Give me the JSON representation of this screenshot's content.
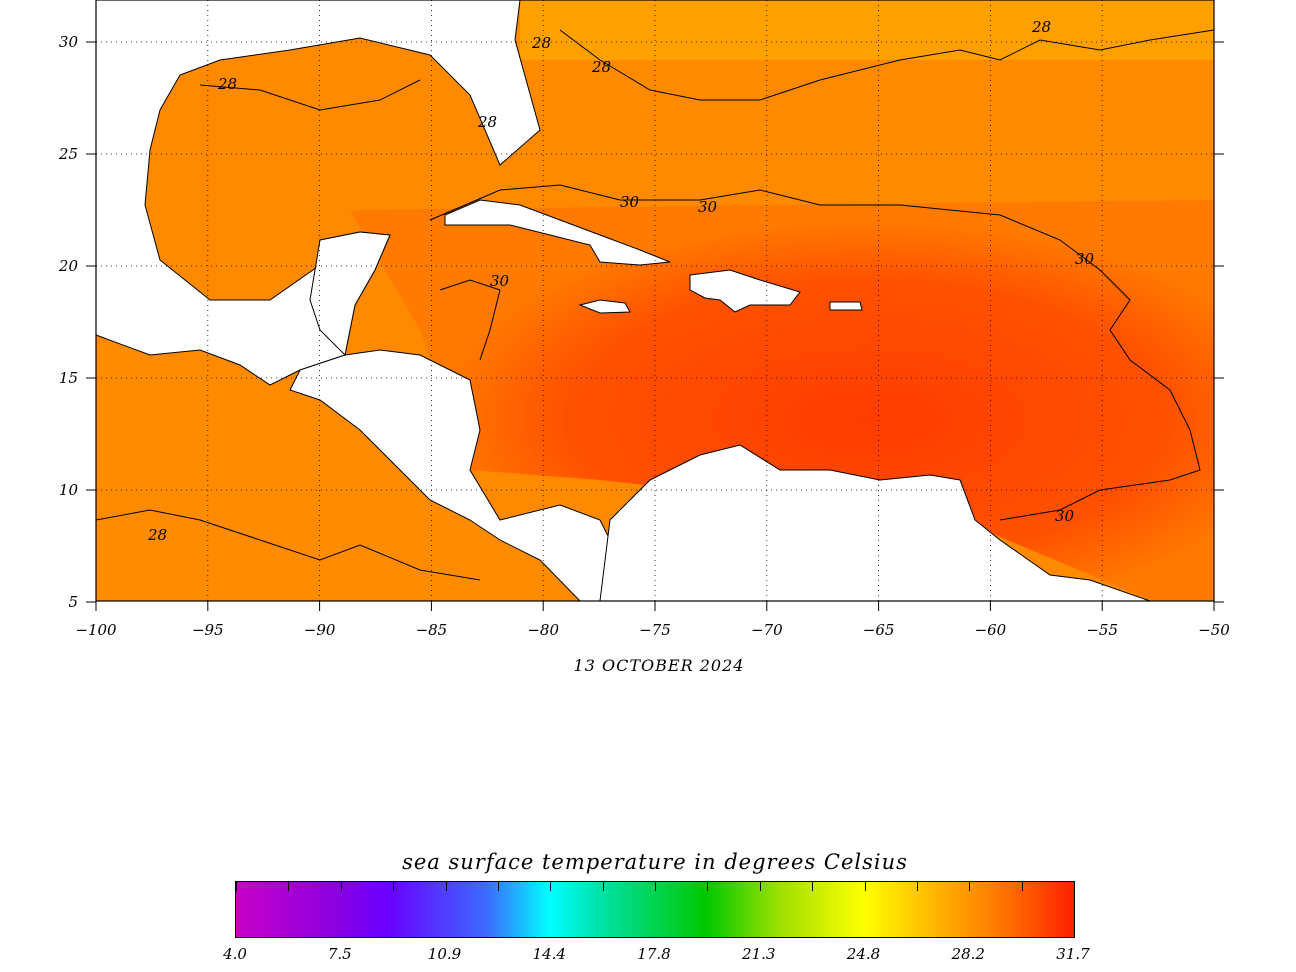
{
  "map": {
    "date": "13 OCTOBER 2024",
    "lon_ticks": [
      "−100",
      "−95",
      "−90",
      "−85",
      "−80",
      "−75",
      "−70",
      "−65",
      "−60",
      "−55",
      "−50"
    ],
    "lat_ticks": [
      "30",
      "25",
      "20",
      "15",
      "10",
      "5"
    ],
    "contour_labels": [
      "28",
      "28",
      "28",
      "28",
      "28",
      "30",
      "30",
      "30",
      "30",
      "30",
      "28"
    ]
  },
  "colorbar": {
    "title": "sea surface temperature in degrees Celsius",
    "labels": [
      "4.0",
      "7.5",
      "10.9",
      "14.4",
      "17.8",
      "21.3",
      "24.8",
      "28.2",
      "31.7"
    ]
  },
  "colors": {
    "warm": "#ff8a00",
    "hot": "#ff4000",
    "land": "#ffffff"
  }
}
